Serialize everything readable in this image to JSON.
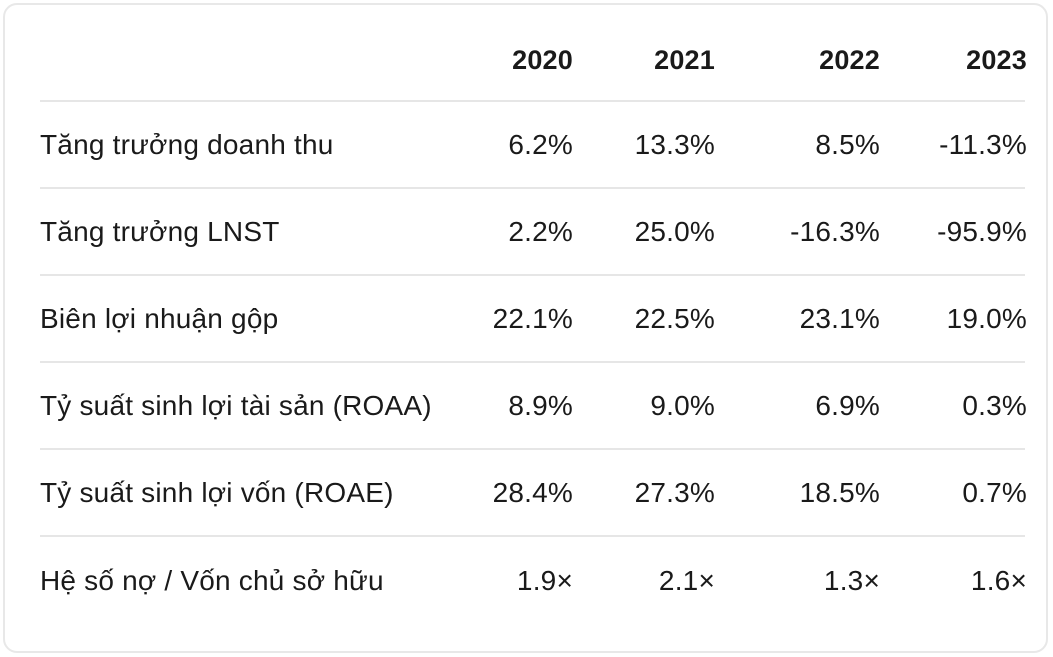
{
  "table": {
    "headers": [
      "2020",
      "2021",
      "2022",
      "2023"
    ],
    "rows": [
      {
        "label": "Tăng trưởng doanh thu",
        "values": [
          "6.2%",
          "13.3%",
          "8.5%",
          "-11.3%"
        ]
      },
      {
        "label": "Tăng trưởng LNST",
        "values": [
          "2.2%",
          "25.0%",
          "-16.3%",
          "-95.9%"
        ]
      },
      {
        "label": "Biên lợi nhuận gộp",
        "values": [
          "22.1%",
          "22.5%",
          "23.1%",
          "19.0%"
        ]
      },
      {
        "label": "Tỷ suất sinh lợi tài sản (ROAA)",
        "values": [
          "8.9%",
          "9.0%",
          "6.9%",
          "0.3%"
        ]
      },
      {
        "label": "Tỷ suất sinh lợi vốn (ROAE)",
        "values": [
          "28.4%",
          "27.3%",
          "18.5%",
          "0.7%"
        ]
      },
      {
        "label": "Hệ số nợ / Vốn chủ sở hữu",
        "values": [
          "1.9×",
          "2.1×",
          "1.3×",
          "1.6×"
        ]
      }
    ]
  }
}
